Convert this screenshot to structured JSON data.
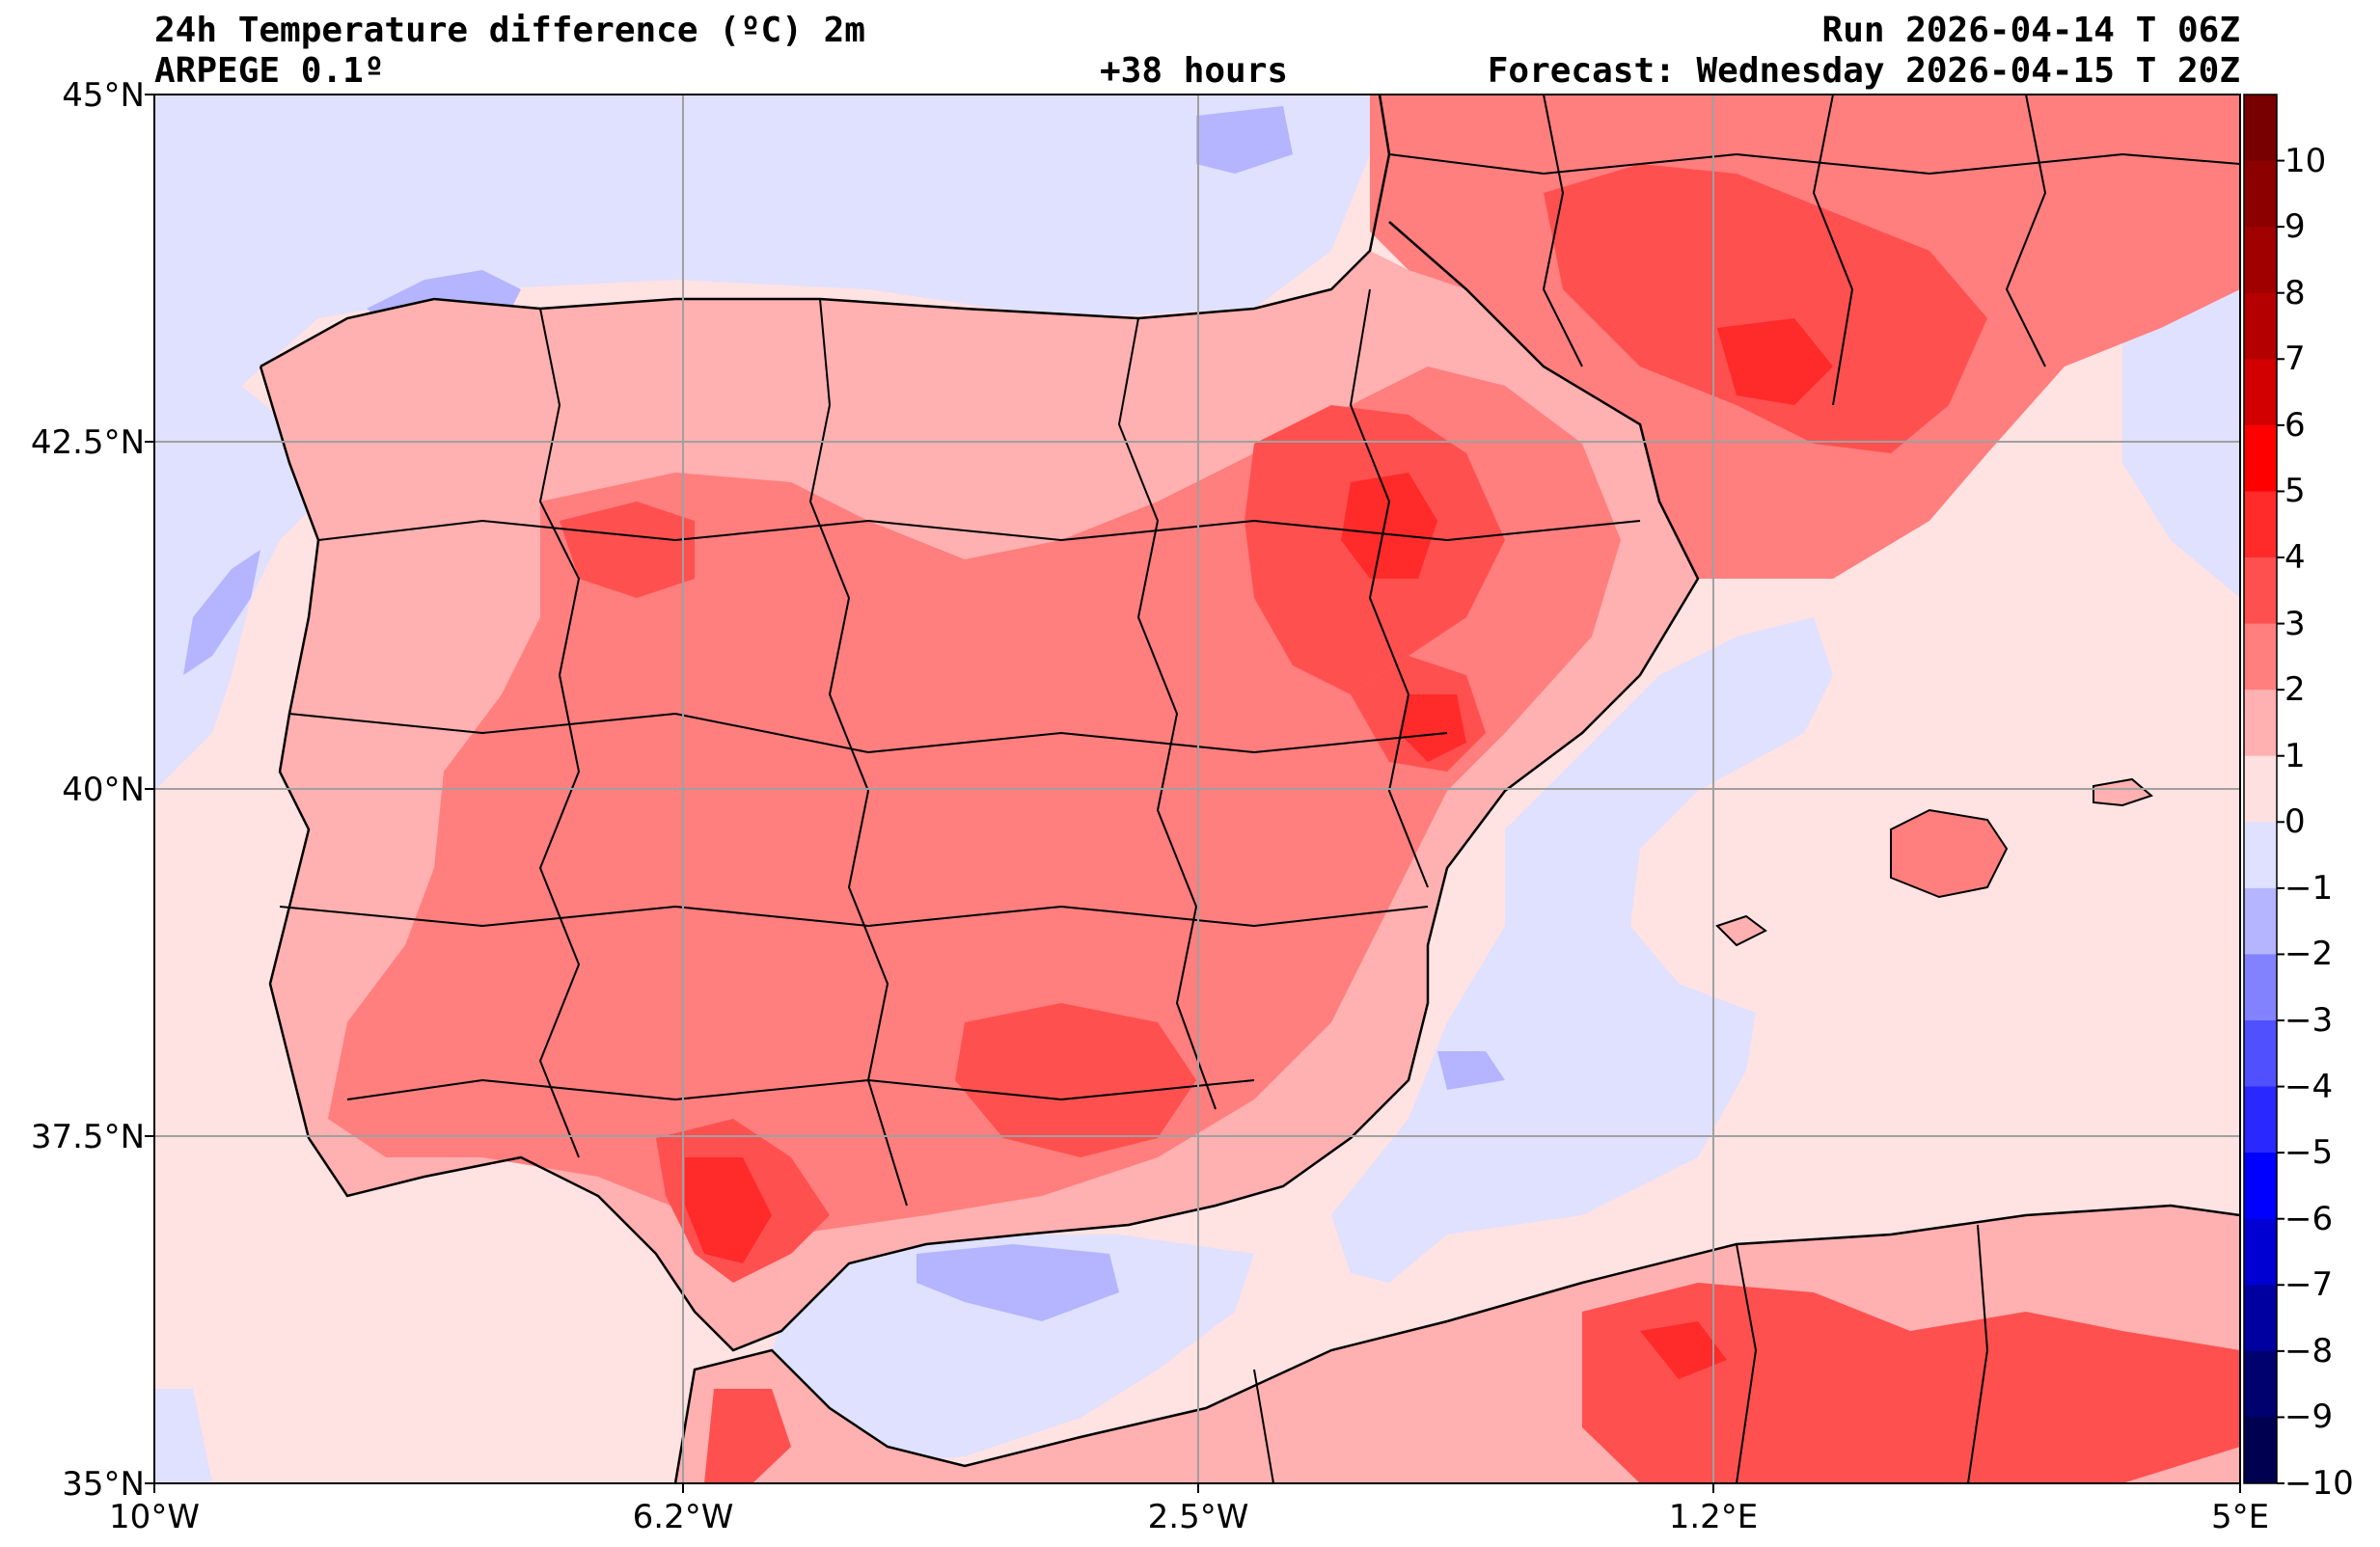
{
  "header": {
    "title": "24h Temperature difference (ºC) 2m",
    "model": "ARPEGE 0.1º",
    "lead": "+38 hours",
    "run": "Run 2026-04-14 T 06Z",
    "forecast": "Forecast: Wednesday 2026-04-15 T 20Z"
  },
  "axes": {
    "lat_labels": [
      "45°N",
      "42.5°N",
      "40°N",
      "37.5°N",
      "35°N"
    ],
    "lon_labels": [
      "10°W",
      "6.2°W",
      "2.5°W",
      "1.2°E",
      "5°E"
    ]
  },
  "colorbar": {
    "labels": [
      "10",
      "9",
      "8",
      "7",
      "6",
      "5",
      "4",
      "3",
      "2",
      "1",
      "0",
      "−1",
      "−2",
      "−3",
      "−4",
      "−5",
      "−6",
      "−7",
      "−8",
      "−9",
      "−10"
    ],
    "colors": [
      "#780000",
      "#8c0000",
      "#a00000",
      "#b40000",
      "#d20000",
      "#ff0000",
      "#ff2a2a",
      "#ff5050",
      "#ff7e7e",
      "#ffb0b0",
      "#ffe0e0",
      "#e0e0ff",
      "#b4b4ff",
      "#8282ff",
      "#5050ff",
      "#2828ff",
      "#0000ff",
      "#0000d2",
      "#0000a0",
      "#00006e",
      "#000050"
    ]
  },
  "map_colors": {
    "sea_neutral": "#ffe2e2",
    "cool": "#e0e0ff",
    "cool_strong": "#b4b4ff",
    "warm1": "#ffb0b0",
    "warm2": "#ff7e7e",
    "warm3": "#ff5050",
    "warm4": "#ff2a2a"
  }
}
